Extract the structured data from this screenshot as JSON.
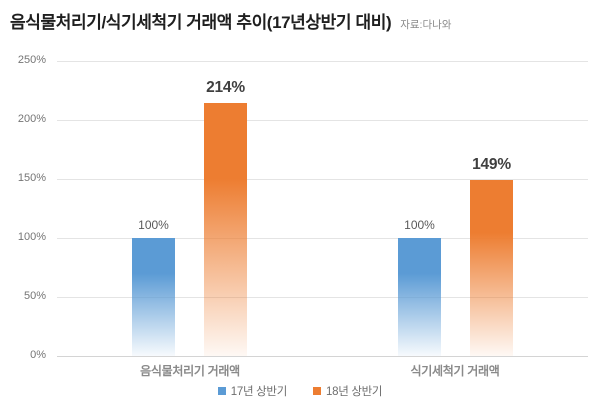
{
  "header": {
    "title": "음식물처리기/식기세척기 거래액 추이(17년상반기 대비)",
    "source": "자료:다나와"
  },
  "chart_data": {
    "type": "bar",
    "categories": [
      "음식물처리기 거래액",
      "식기세척기 거래액"
    ],
    "series": [
      {
        "name": "17년 상반기",
        "color": "#5B9BD5",
        "values": [
          100,
          100
        ],
        "labels": [
          "100%",
          "100%"
        ]
      },
      {
        "name": "18년 상반기",
        "color": "#ED7D31",
        "values": [
          214,
          149
        ],
        "labels": [
          "214%",
          "149%"
        ]
      }
    ],
    "title": "음식물처리기/식기세척기 거래액 추이(17년상반기 대비)",
    "xlabel": "",
    "ylabel": "",
    "ylim": [
      0,
      250
    ],
    "ytick_step": 50,
    "ytick_labels": [
      "0%",
      "50%",
      "100%",
      "150%",
      "200%",
      "250%"
    ],
    "grid": "horizontal-only",
    "legend_position": "bottom-center",
    "bar_style": "vertical-gradient-fade-to-white"
  },
  "colors": {
    "background": "#FFFFFF",
    "series_blue": "#5B9BD5",
    "series_orange": "#ED7D31",
    "gridline": "#E4E4E4",
    "axis_line": "#D4D4D4",
    "tick_label": "#757575",
    "category_label": "#8A8A8A",
    "value_label_small": "#595959",
    "value_label_large": "#3F3F3F",
    "title": "#1F1F1F",
    "source": "#8A8A8A",
    "legend_text": "#6E6E6E"
  }
}
